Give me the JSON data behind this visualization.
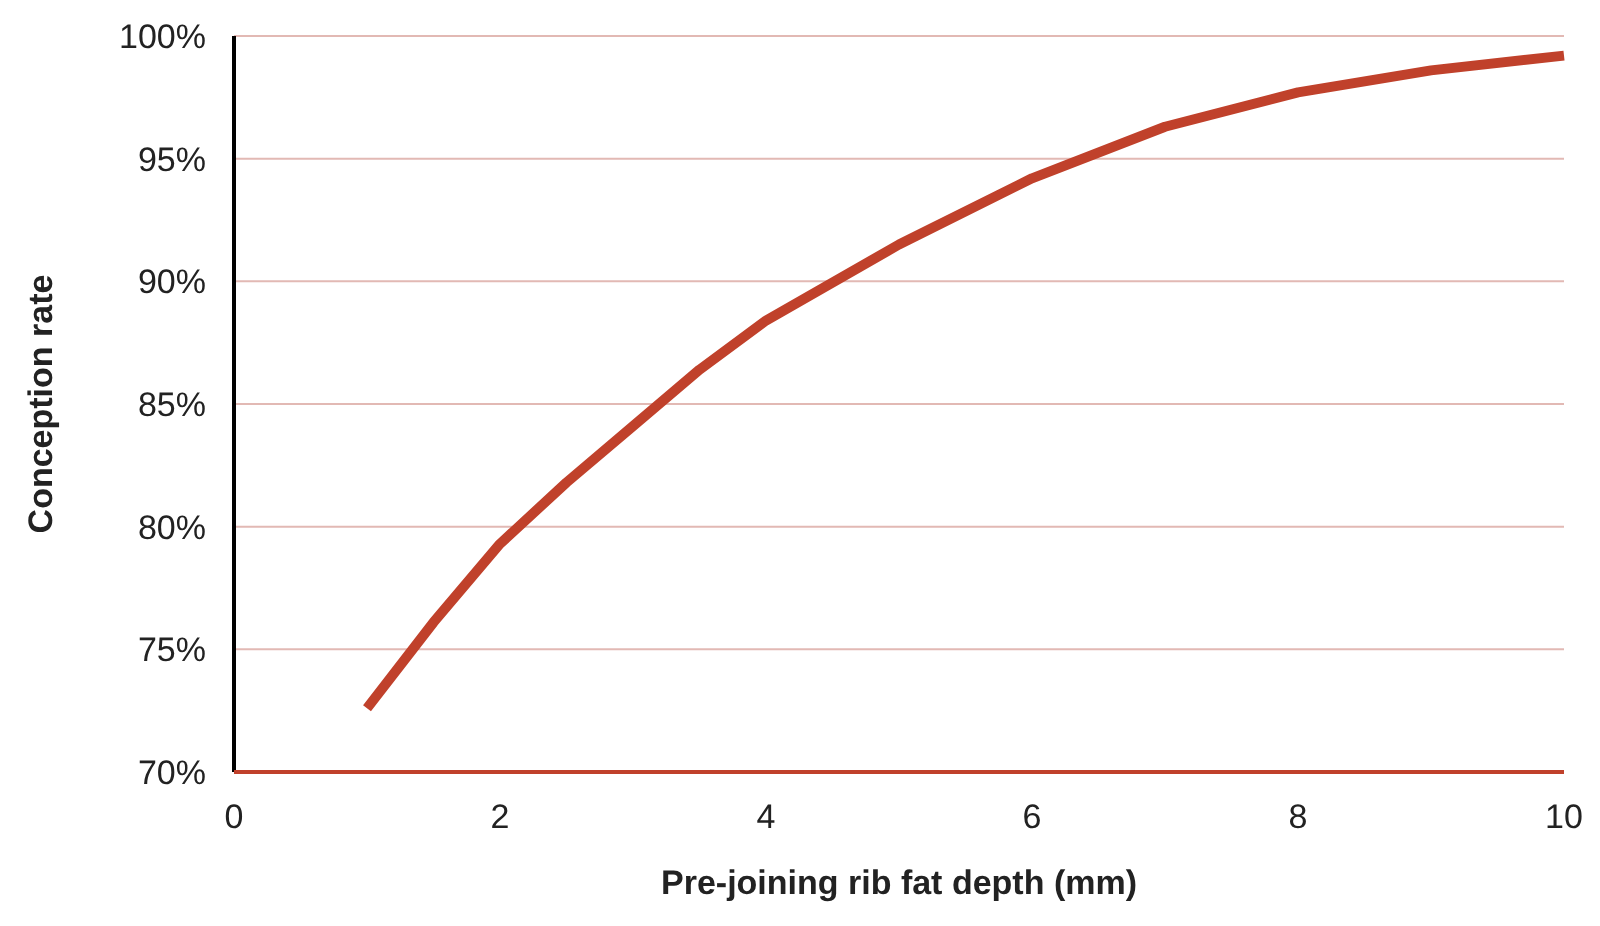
{
  "chart_data": {
    "type": "line",
    "xlabel": "Pre-joining rib fat depth (mm)",
    "ylabel": "Conception rate",
    "x": [
      1,
      1.5,
      2,
      2.5,
      3,
      3.5,
      4,
      5,
      6,
      7,
      8,
      9,
      10
    ],
    "series": [
      {
        "color": "#c0412b",
        "values": [
          72.6,
          76.1,
          79.3,
          81.8,
          84.1,
          86.4,
          88.4,
          91.5,
          94.2,
          96.3,
          97.7,
          98.6,
          99.2
        ]
      }
    ],
    "xlim": [
      0,
      10
    ],
    "xticks": [
      0,
      2,
      4,
      6,
      8,
      10
    ],
    "ylim": [
      70,
      100
    ],
    "yticks": [
      {
        "value": 70,
        "label": "70%"
      },
      {
        "value": 75,
        "label": "75%"
      },
      {
        "value": 80,
        "label": "80%"
      },
      {
        "value": 85,
        "label": "85%"
      },
      {
        "value": 90,
        "label": "90%"
      },
      {
        "value": 95,
        "label": "95%"
      },
      {
        "value": 100,
        "label": "100%"
      }
    ],
    "grid": "y",
    "marker": "none",
    "line_style": "solid"
  }
}
